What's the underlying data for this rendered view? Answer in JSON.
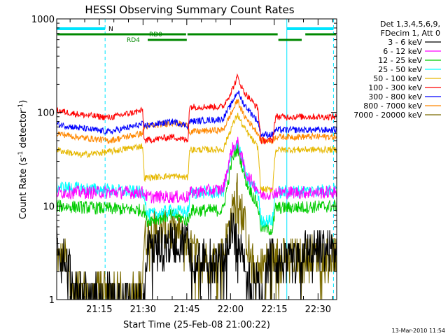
{
  "chart_data": {
    "type": "line",
    "title": "HESSI Observing Summary Count Rates",
    "xlabel": "Start Time (25-Feb-08 21:00:22)",
    "ylabel_main": "Count Rate (s",
    "ylabel_sup1": "-1",
    "ylabel_mid": " detector",
    "ylabel_sup2": "-1",
    "ylabel_end": ")",
    "yscale": "log",
    "ylim": [
      1,
      1000
    ],
    "xlim_minutes": [
      0,
      96
    ],
    "x_ticks": [
      {
        "label": "21:15",
        "value": 14.6
      },
      {
        "label": "21:30",
        "value": 29.6
      },
      {
        "label": "21:45",
        "value": 44.6
      },
      {
        "label": "22:00",
        "value": 59.6
      },
      {
        "label": "22:15",
        "value": 74.6
      },
      {
        "label": "22:30",
        "value": 89.6
      }
    ],
    "y_ticks": [
      {
        "label": "1",
        "value": 1
      },
      {
        "label": "10",
        "value": 10
      },
      {
        "label": "100",
        "value": 100
      },
      {
        "label": "1000",
        "value": 1000
      }
    ],
    "legend_header": [
      "Det 1,3,4,5,6,9,",
      "FDecim 1, Att 0"
    ],
    "legend_position": "right",
    "footer_date": "13-Mar-2010 11:54",
    "series": [
      {
        "name": "3 - 6 keV",
        "color": "#000000",
        "x": [
          0,
          5,
          5.5,
          30,
          31,
          45,
          46,
          57,
          60,
          62,
          65,
          69,
          70,
          72,
          74,
          75,
          83,
          84,
          96
        ],
        "y": [
          3.8,
          2.0,
          1.2,
          1.0,
          3.5,
          4.5,
          3.0,
          2.5,
          6.0,
          4.0,
          2.0,
          1.5,
          1.0,
          2.0,
          3.5,
          2.5,
          2.5,
          3.5,
          3.5
        ]
      },
      {
        "name": "6 - 12 keV",
        "color": "#ff00ff",
        "x": [
          0,
          30,
          31,
          45,
          46,
          57,
          60,
          62,
          65,
          69,
          70,
          74,
          75,
          96
        ],
        "y": [
          14,
          14,
          12.5,
          12.5,
          14,
          15,
          40,
          48,
          22,
          15,
          13,
          14,
          14,
          14
        ]
      },
      {
        "name": "12 - 25 keV",
        "color": "#00cc00",
        "x": [
          0,
          30,
          31,
          40,
          45,
          46,
          57,
          60,
          62,
          65,
          69,
          70,
          74,
          75,
          96
        ],
        "y": [
          10,
          9,
          7,
          8,
          7,
          9,
          9,
          30,
          42,
          18,
          10,
          6,
          5.5,
          9.5,
          10
        ]
      },
      {
        "name": "25 - 50 keV",
        "color": "#00ffff",
        "x": [
          0,
          30,
          31,
          40,
          45,
          46,
          57,
          60,
          62,
          65,
          69,
          70,
          74,
          75,
          96
        ],
        "y": [
          16,
          14,
          8,
          9,
          8.5,
          14,
          14,
          35,
          50,
          20,
          14,
          7,
          7,
          14,
          15
        ]
      },
      {
        "name": "50 - 100 keV",
        "color": "#e6b800",
        "x": [
          0,
          8,
          18,
          29.5,
          30,
          40,
          45,
          45.5,
          57,
          60,
          62,
          64,
          69,
          70,
          74,
          75,
          96
        ],
        "y": [
          40,
          35,
          38,
          44,
          20,
          21,
          20,
          40,
          40,
          70,
          95,
          70,
          42,
          15,
          15,
          40,
          40
        ]
      },
      {
        "name": "100 - 300 keV",
        "color": "#ff0000",
        "x": [
          0,
          8,
          18,
          29.5,
          30,
          40,
          45,
          45.5,
          57,
          60,
          62,
          64,
          69,
          70,
          74,
          75,
          96
        ],
        "y": [
          105,
          95,
          88,
          105,
          50,
          55,
          50,
          115,
          115,
          170,
          240,
          170,
          110,
          50,
          50,
          90,
          90
        ]
      },
      {
        "name": "300 - 800 keV",
        "color": "#0000ff",
        "x": [
          0,
          8,
          18,
          29.5,
          30,
          40,
          45,
          45.5,
          57,
          60,
          62,
          64,
          69,
          70,
          74,
          75,
          96
        ],
        "y": [
          75,
          68,
          62,
          75,
          72,
          80,
          72,
          80,
          85,
          125,
          170,
          125,
          80,
          58,
          58,
          65,
          65
        ]
      },
      {
        "name": "800 - 7000 keV",
        "color": "#ff8800",
        "x": [
          0,
          8,
          18,
          29.5,
          30,
          40,
          45,
          45.5,
          57,
          60,
          62,
          64,
          69,
          70,
          74,
          75,
          96
        ],
        "y": [
          60,
          54,
          50,
          60,
          70,
          78,
          72,
          62,
          65,
          100,
          135,
          95,
          60,
          50,
          50,
          55,
          55
        ]
      },
      {
        "name": "7000 - 20000 keV",
        "color": "#7a6a00",
        "x": [
          0,
          4,
          5,
          8,
          12,
          15,
          20,
          29,
          30,
          33,
          40,
          44,
          46,
          50,
          55,
          57,
          60,
          62,
          64,
          66,
          68,
          69,
          70,
          72,
          74,
          76,
          80,
          84,
          88,
          96
        ],
        "y": [
          2.8,
          2.6,
          1.5,
          1.3,
          1.2,
          1.2,
          1.2,
          1.3,
          4.5,
          5.5,
          5.5,
          4.5,
          3.5,
          2.8,
          2.8,
          3.0,
          8.0,
          15,
          8.0,
          3.0,
          2.2,
          2.2,
          2.4,
          2.6,
          2.8,
          2.8,
          2.8,
          2.8,
          3.0,
          3.0
        ]
      }
    ],
    "flags": {
      "vertical_markers_minutes": [
        0,
        16.6,
        78.9,
        94.9
      ],
      "N_label": "N",
      "N_segments": [
        [
          0,
          16.6
        ],
        [
          78.9,
          94.9
        ]
      ],
      "RD0_label": "RD0",
      "RD0_segments": [
        [
          0,
          44.6
        ],
        [
          44.6,
          76.0
        ],
        [
          85.0,
          96
        ]
      ],
      "RD4_label": "RD4",
      "RD4_segments": [
        [
          31.2,
          44.6
        ],
        [
          76.0,
          84.0
        ]
      ]
    }
  }
}
